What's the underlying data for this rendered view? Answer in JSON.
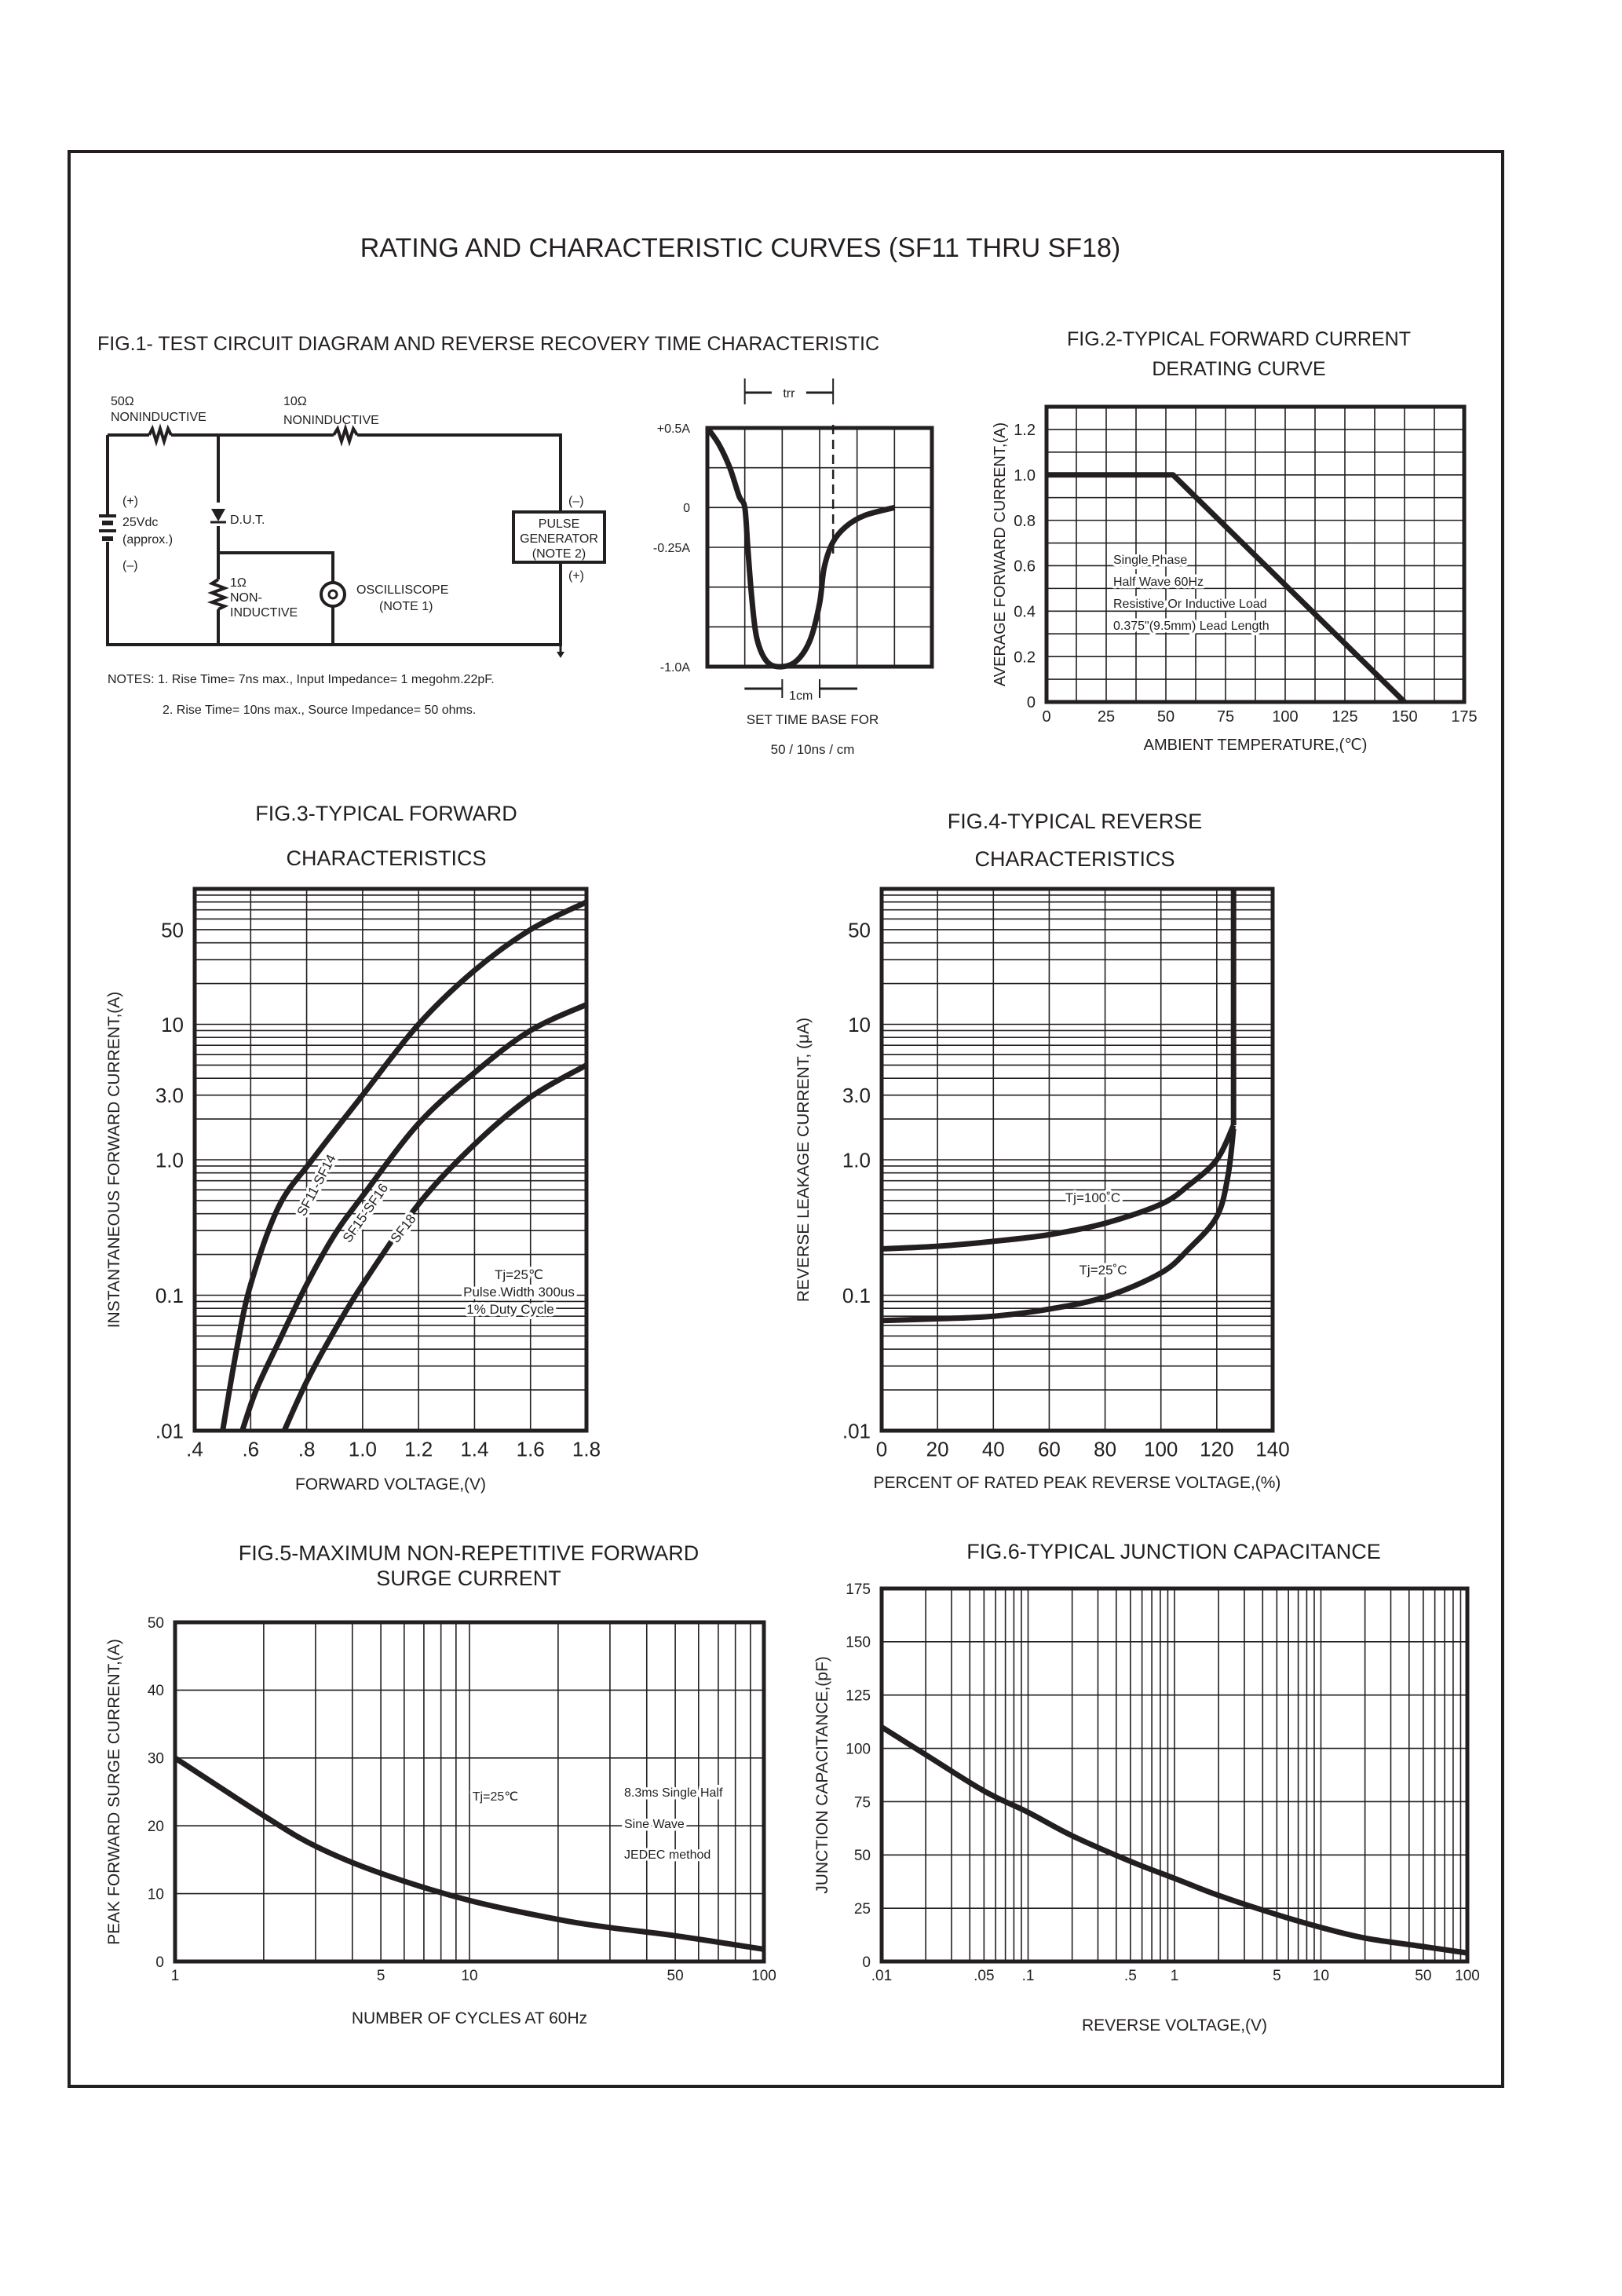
{
  "page": {
    "title": "RATING AND CHARACTERISTIC CURVES (SF11 THRU SF18)"
  },
  "figure1": {
    "title": "FIG.1- TEST CIRCUIT DIAGRAM AND REVERSE RECOVERY TIME CHARACTERISTIC",
    "circuit": {
      "r50_value": "50Ω",
      "r50_type": "NONINDUCTIVE",
      "r10_value": "10Ω",
      "r10_type": "NONINDUCTIVE",
      "battery_plus": "(+)",
      "battery_voltage": "25Vdc",
      "battery_approx": "(approx.)",
      "battery_minus": "(–)",
      "dut": "D.U.T.",
      "r1_value": "1Ω",
      "r1_type_1": "NON-",
      "r1_type_2": "INDUCTIVE",
      "scope_1": "OSCILLISCOPE",
      "scope_2": "(NOTE 1)",
      "pulse_minus": "(–)",
      "pulse_plus": "(+)",
      "pulse_1": "PULSE",
      "pulse_2": "GENERATOR",
      "pulse_3": "(NOTE 2)"
    },
    "notes": [
      "NOTES: 1. Rise Time= 7ns max., Input Impedance= 1 megohm.22pF.",
      "2. Rise Time= 10ns max., Source Impedance= 50 ohms."
    ]
  },
  "chart_data": [
    {
      "type": "line",
      "title": [],
      "xlabel": "",
      "ylabel": "",
      "xscale": "linear",
      "yscale": "linear",
      "xlim": [
        0,
        6
      ],
      "ylim": [
        -1.0,
        0.5
      ],
      "grid": {
        "on": true,
        "x_step": 1,
        "y_step": 0.25
      },
      "xticks": [],
      "yticks": [
        {
          "value": 0.5,
          "label": "+0.5A"
        },
        {
          "value": 0,
          "label": "0"
        },
        {
          "value": -0.25,
          "label": "-0.25A"
        },
        {
          "value": -1.0,
          "label": "-1.0A"
        }
      ],
      "series": [
        {
          "smooth": true,
          "points": [
            [
              0,
              0.5
            ],
            [
              0.3,
              0.4
            ],
            [
              0.6,
              0.25
            ],
            [
              0.85,
              0.07
            ],
            [
              1.0,
              0
            ],
            [
              1.08,
              -0.25
            ],
            [
              1.18,
              -0.55
            ],
            [
              1.32,
              -0.82
            ],
            [
              1.6,
              -0.97
            ],
            [
              2.0,
              -1.0
            ],
            [
              2.4,
              -0.96
            ],
            [
              2.75,
              -0.83
            ],
            [
              3.0,
              -0.6
            ],
            [
              3.12,
              -0.38
            ],
            [
              3.35,
              -0.22
            ],
            [
              3.7,
              -0.12
            ],
            [
              4.2,
              -0.05
            ],
            [
              5.0,
              0
            ]
          ]
        }
      ],
      "markers": {
        "trr": {
          "from": 1.0,
          "to": 3.36,
          "label": "trr"
        },
        "scale_bar": {
          "from": 2,
          "to": 3,
          "label": "1cm"
        }
      },
      "annotations": [
        "SET TIME BASE FOR",
        "50 / 10ns / cm"
      ]
    },
    {
      "type": "line",
      "title": [
        "FIG.2-TYPICAL FORWARD CURRENT",
        "DERATING CURVE"
      ],
      "xlabel": "AMBIENT TEMPERATURE,(℃)",
      "ylabel": "AVERAGE FORWARD CURRENT,(A)",
      "xscale": "linear",
      "yscale": "linear",
      "xlim": [
        0,
        175
      ],
      "ylim": [
        0,
        1.3
      ],
      "grid": {
        "on": true,
        "x_step": 12.5,
        "y_step": 0.1
      },
      "xticks": [
        {
          "value": 0,
          "label": "0"
        },
        {
          "value": 25,
          "label": "25"
        },
        {
          "value": 50,
          "label": "50"
        },
        {
          "value": 75,
          "label": "75"
        },
        {
          "value": 100,
          "label": "100"
        },
        {
          "value": 125,
          "label": "125"
        },
        {
          "value": 150,
          "label": "150"
        },
        {
          "value": 175,
          "label": "175"
        }
      ],
      "yticks": [
        {
          "value": 0,
          "label": "0"
        },
        {
          "value": 0.2,
          "label": "0.2"
        },
        {
          "value": 0.4,
          "label": "0.4"
        },
        {
          "value": 0.6,
          "label": "0.6"
        },
        {
          "value": 0.8,
          "label": "0.8"
        },
        {
          "value": 1.0,
          "label": "1.0"
        },
        {
          "value": 1.2,
          "label": "1.2"
        }
      ],
      "series": [
        {
          "smooth": false,
          "points": [
            [
              0,
              1.0
            ],
            [
              53,
              1.0
            ],
            [
              150,
              0
            ]
          ]
        }
      ],
      "annotations": [
        "Single Phase",
        "Half Wave 60Hz",
        "Resistive Or Inductive Load",
        "0.375\"(9.5mm) Lead Length"
      ]
    },
    {
      "type": "line",
      "title": [
        "FIG.3-TYPICAL FORWARD",
        "CHARACTERISTICS"
      ],
      "xlabel": "FORWARD VOLTAGE,(V)",
      "ylabel": "INSTANTANEOUS FORWARD CURRENT,(A)",
      "xscale": "linear",
      "yscale": "log",
      "xlim": [
        0.4,
        1.8
      ],
      "ylim": [
        0.01,
        100
      ],
      "grid": {
        "on": true,
        "x_step": 0.2,
        "y_step": "log-minor"
      },
      "xticks": [
        {
          "value": 0.4,
          "label": ".4"
        },
        {
          "value": 0.6,
          "label": ".6"
        },
        {
          "value": 0.8,
          "label": ".8"
        },
        {
          "value": 1.0,
          "label": "1.0"
        },
        {
          "value": 1.2,
          "label": "1.2"
        },
        {
          "value": 1.4,
          "label": "1.4"
        },
        {
          "value": 1.6,
          "label": "1.6"
        },
        {
          "value": 1.8,
          "label": "1.8"
        }
      ],
      "yticks": [
        {
          "value": 0.01,
          "label": ".01"
        },
        {
          "value": 0.1,
          "label": "0.1"
        },
        {
          "value": 1,
          "label": "1.0"
        },
        {
          "value": 3,
          "label": "3.0"
        },
        {
          "value": 10,
          "label": "10"
        },
        {
          "value": 50,
          "label": "50"
        }
      ],
      "series": [
        {
          "name": "SF11-SF14",
          "smooth": true,
          "points": [
            [
              0.5,
              0.01
            ],
            [
              0.55,
              0.04
            ],
            [
              0.6,
              0.12
            ],
            [
              0.7,
              0.45
            ],
            [
              0.82,
              1.0
            ],
            [
              1.0,
              3.0
            ],
            [
              1.2,
              10
            ],
            [
              1.4,
              25
            ],
            [
              1.6,
              50
            ],
            [
              1.8,
              80
            ]
          ]
        },
        {
          "name": "SF15-SF16",
          "smooth": true,
          "points": [
            [
              0.57,
              0.01
            ],
            [
              0.62,
              0.02
            ],
            [
              0.7,
              0.045
            ],
            [
              0.8,
              0.12
            ],
            [
              0.9,
              0.28
            ],
            [
              1.0,
              0.54
            ],
            [
              1.2,
              1.85
            ],
            [
              1.4,
              4.4
            ],
            [
              1.6,
              9
            ],
            [
              1.8,
              14
            ]
          ]
        },
        {
          "name": "SF18",
          "smooth": true,
          "points": [
            [
              0.72,
              0.01
            ],
            [
              0.8,
              0.023
            ],
            [
              0.9,
              0.055
            ],
            [
              1.0,
              0.12
            ],
            [
              1.2,
              0.47
            ],
            [
              1.4,
              1.3
            ],
            [
              1.6,
              2.9
            ],
            [
              1.8,
              5
            ]
          ]
        }
      ],
      "annotations": [
        "Tj=25℃",
        "Pulse Width 300us",
        "1% Duty Cycle"
      ]
    },
    {
      "type": "line",
      "title": [
        "FIG.4-TYPICAL REVERSE",
        "CHARACTERISTICS"
      ],
      "xlabel": "PERCENT OF RATED PEAK REVERSE VOLTAGE,(%)",
      "ylabel": "REVERSE LEAKAGE CURRENT, (μA)",
      "xscale": "linear",
      "yscale": "log",
      "xlim": [
        0,
        140
      ],
      "ylim": [
        0.01,
        100
      ],
      "grid": {
        "on": true,
        "x_step": 20,
        "y_step": "log-minor"
      },
      "xticks": [
        {
          "value": 0,
          "label": "0"
        },
        {
          "value": 20,
          "label": "20"
        },
        {
          "value": 40,
          "label": "40"
        },
        {
          "value": 60,
          "label": "60"
        },
        {
          "value": 80,
          "label": "80"
        },
        {
          "value": 100,
          "label": "100"
        },
        {
          "value": 120,
          "label": "120"
        },
        {
          "value": 140,
          "label": "140"
        }
      ],
      "yticks": [
        {
          "value": 0.01,
          "label": ".01"
        },
        {
          "value": 0.1,
          "label": "0.1"
        },
        {
          "value": 1,
          "label": "1.0"
        },
        {
          "value": 3,
          "label": "3.0"
        },
        {
          "value": 10,
          "label": "10"
        },
        {
          "value": 50,
          "label": "50"
        }
      ],
      "series": [
        {
          "name": "Tj=100˚C",
          "smooth": true,
          "points": [
            [
              0,
              0.22
            ],
            [
              20,
              0.23
            ],
            [
              40,
              0.25
            ],
            [
              60,
              0.28
            ],
            [
              80,
              0.34
            ],
            [
              100,
              0.47
            ],
            [
              110,
              0.65
            ],
            [
              120,
              1.0
            ],
            [
              126,
              1.8
            ]
          ]
        },
        {
          "name": "Tj=25˚C",
          "smooth": true,
          "points": [
            [
              0,
              0.065
            ],
            [
              20,
              0.067
            ],
            [
              40,
              0.07
            ],
            [
              60,
              0.079
            ],
            [
              80,
              0.097
            ],
            [
              100,
              0.146
            ],
            [
              110,
              0.22
            ],
            [
              120,
              0.38
            ],
            [
              124,
              0.76
            ],
            [
              126,
              1.7
            ]
          ]
        },
        {
          "smooth": false,
          "points": [
            [
              126,
              1.8
            ],
            [
              126,
              100
            ]
          ]
        }
      ],
      "annotations": []
    },
    {
      "type": "line",
      "title": [
        "FIG.5-MAXIMUM NON-REPETITIVE FORWARD",
        "SURGE CURRENT"
      ],
      "xlabel": "NUMBER OF CYCLES AT 60Hz",
      "ylabel": "PEAK FORWARD SURGE CURRENT,(A)",
      "xscale": "log",
      "yscale": "linear",
      "xlim": [
        1,
        100
      ],
      "ylim": [
        0,
        50
      ],
      "grid": {
        "on": true,
        "x_step": "log-minor",
        "y_step": 10
      },
      "xticks": [
        {
          "value": 1,
          "label": "1"
        },
        {
          "value": 5,
          "label": "5"
        },
        {
          "value": 10,
          "label": "10"
        },
        {
          "value": 50,
          "label": "50"
        },
        {
          "value": 100,
          "label": "100"
        }
      ],
      "yticks": [
        {
          "value": 0,
          "label": "0"
        },
        {
          "value": 10,
          "label": "10"
        },
        {
          "value": 20,
          "label": "20"
        },
        {
          "value": 30,
          "label": "30"
        },
        {
          "value": 40,
          "label": "40"
        },
        {
          "value": 50,
          "label": "50"
        }
      ],
      "series": [
        {
          "smooth": true,
          "points": [
            [
              1,
              30
            ],
            [
              2,
              21.5
            ],
            [
              3,
              17
            ],
            [
              5,
              13
            ],
            [
              10,
              9
            ],
            [
              20,
              6.2
            ],
            [
              30,
              5
            ],
            [
              50,
              3.8
            ],
            [
              100,
              1.8
            ]
          ]
        }
      ],
      "annotations": [
        "Tj=25℃",
        "8.3ms Single Half",
        "Sine Wave",
        "JEDEC method"
      ]
    },
    {
      "type": "line",
      "title": [
        "FIG.6-TYPICAL JUNCTION CAPACITANCE"
      ],
      "xlabel": "REVERSE VOLTAGE,(V)",
      "ylabel": "JUNCTION CAPACITANCE,(pF)",
      "xscale": "log",
      "yscale": "linear",
      "xlim": [
        0.01,
        100
      ],
      "ylim": [
        0,
        175
      ],
      "grid": {
        "on": true,
        "x_step": "log-minor",
        "y_step": 25
      },
      "xticks": [
        {
          "value": 0.01,
          "label": ".01"
        },
        {
          "value": 0.05,
          "label": ".05"
        },
        {
          "value": 0.1,
          "label": ".1"
        },
        {
          "value": 0.5,
          "label": ".5"
        },
        {
          "value": 1,
          "label": "1"
        },
        {
          "value": 5,
          "label": "5"
        },
        {
          "value": 10,
          "label": "10"
        },
        {
          "value": 50,
          "label": "50"
        },
        {
          "value": 100,
          "label": "100"
        }
      ],
      "yticks": [
        {
          "value": 0,
          "label": "0"
        },
        {
          "value": 25,
          "label": "25"
        },
        {
          "value": 50,
          "label": "50"
        },
        {
          "value": 75,
          "label": "75"
        },
        {
          "value": 100,
          "label": "100"
        },
        {
          "value": 125,
          "label": "125"
        },
        {
          "value": 150,
          "label": "150"
        },
        {
          "value": 175,
          "label": "175"
        }
      ],
      "series": [
        {
          "smooth": true,
          "points": [
            [
              0.01,
              110
            ],
            [
              0.02,
              97
            ],
            [
              0.05,
              80
            ],
            [
              0.1,
              70
            ],
            [
              0.2,
              59
            ],
            [
              0.5,
              47
            ],
            [
              1,
              39
            ],
            [
              2,
              31
            ],
            [
              5,
              22
            ],
            [
              10,
              16
            ],
            [
              20,
              11
            ],
            [
              50,
              7
            ],
            [
              100,
              4
            ]
          ]
        }
      ],
      "annotations": []
    }
  ]
}
